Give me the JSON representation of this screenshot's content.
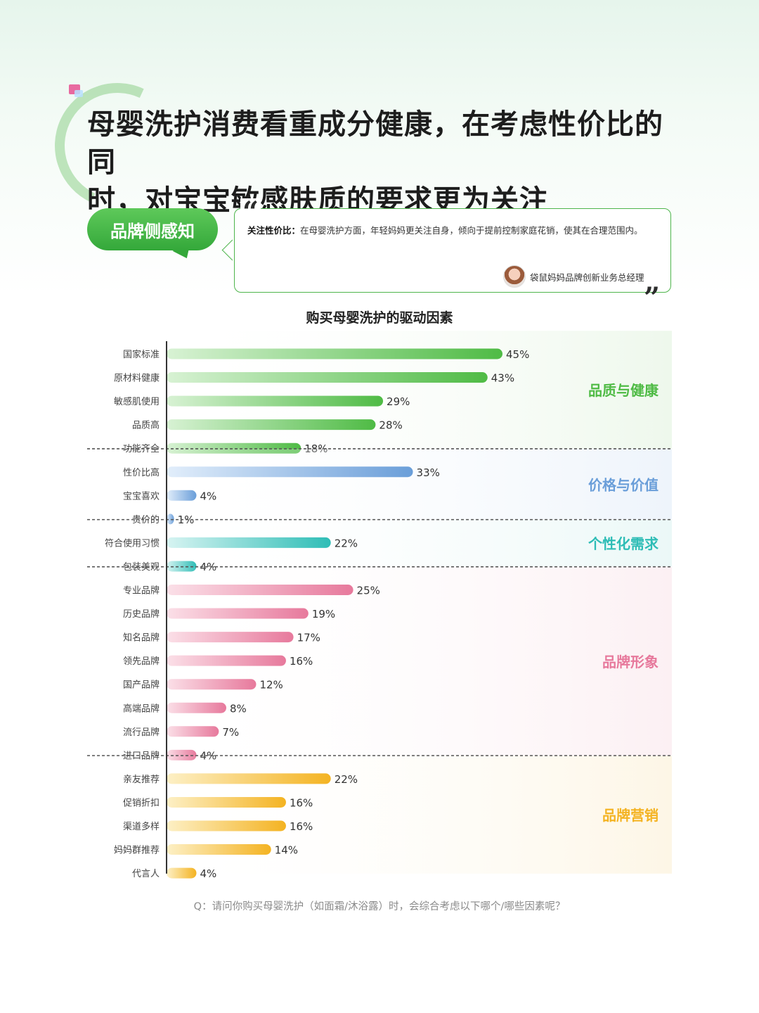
{
  "title_lines": [
    "母婴洗护消费看重成分健康，在考虑性价比的同",
    "时，对宝宝敏感肤质的要求更为关注"
  ],
  "brand_label": "品牌侧感知",
  "quote": {
    "lead": "关注性价比：",
    "text": "在母婴洗护方面，年轻妈妈更关注自身，倾向于提前控制家庭花销，使其在合理范围内。",
    "author": "袋鼠妈妈品牌创新业务总经理"
  },
  "footnote": "Q：请问你购买母婴洗护（如面霜/沐浴露）时，会综合考虑以下哪个/哪些因素呢？",
  "colors": {
    "green": [
      "#d8f2d4",
      "#4fbb45"
    ],
    "blue": [
      "#e2eefb",
      "#6a9ed9"
    ],
    "teal": [
      "#d7f4f2",
      "#2ebdb6"
    ],
    "pink": [
      "#fbe0e8",
      "#e7799c"
    ],
    "orange": [
      "#fdf0c6",
      "#f4b322"
    ]
  },
  "chart_data": {
    "type": "bar",
    "orientation": "horizontal",
    "title": "购买母婴洗护的驱动因素",
    "xlim": [
      0,
      45
    ],
    "unit": "%",
    "groups": [
      {
        "name": "品质与健康",
        "color": "green",
        "bg": "#eef8ec",
        "categories": [
          "国家标准",
          "原材料健康",
          "敏感肌使用",
          "品质高",
          "功能齐全"
        ],
        "values": [
          45,
          43,
          29,
          28,
          18
        ]
      },
      {
        "name": "价格与价值",
        "color": "blue",
        "bg": "#eef4fb",
        "categories": [
          "性价比高",
          "宝宝喜欢",
          "贵价的"
        ],
        "values": [
          33,
          4,
          1
        ]
      },
      {
        "name": "个性化需求",
        "color": "teal",
        "bg": "#ebf8f7",
        "categories": [
          "符合使用习惯",
          "包装美观"
        ],
        "values": [
          22,
          4
        ]
      },
      {
        "name": "品牌形象",
        "color": "pink",
        "bg": "#fcf0f3",
        "categories": [
          "专业品牌",
          "历史品牌",
          "知名品牌",
          "领先品牌",
          "国产品牌",
          "高端品牌",
          "流行品牌",
          "进口品牌"
        ],
        "values": [
          25,
          19,
          17,
          16,
          12,
          8,
          7,
          4
        ]
      },
      {
        "name": "品牌营销",
        "color": "orange",
        "bg": "#fdf6e6",
        "categories": [
          "亲友推荐",
          "促销折扣",
          "渠道多样",
          "妈妈群推荐",
          "代言人"
        ],
        "values": [
          22,
          16,
          16,
          14,
          4
        ]
      }
    ]
  }
}
